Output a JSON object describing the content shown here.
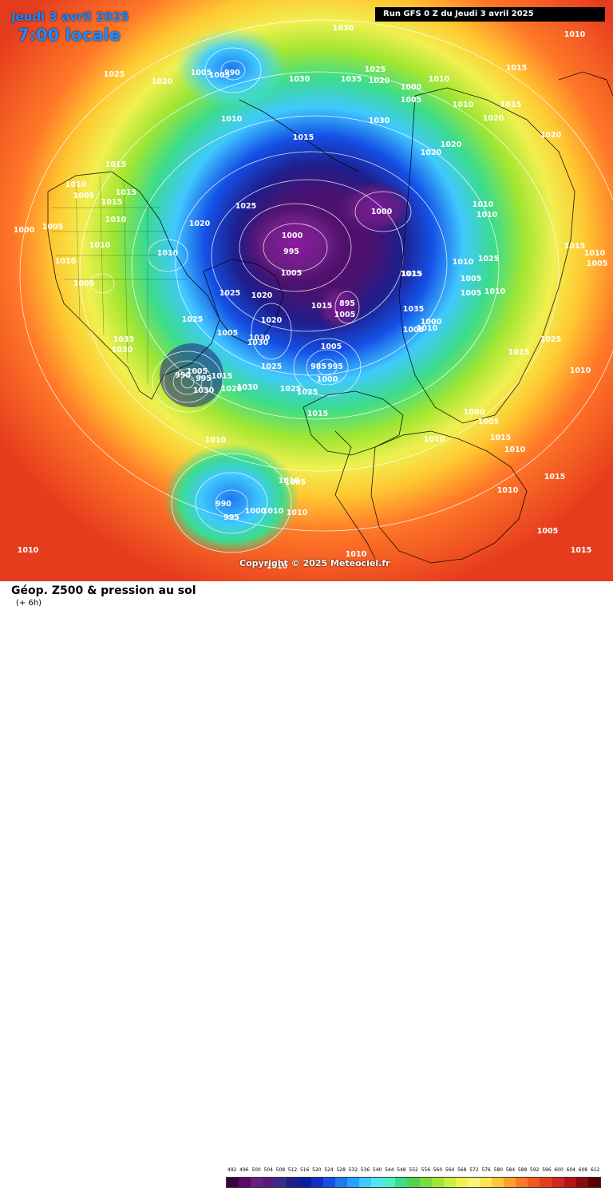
{
  "header": {
    "date_title": "Jeudi 3 avril 2025",
    "time_title": "7:00 locale",
    "run_info": "Run GFS 0 Z du Jeudi 3 avril 2025"
  },
  "copyright": "Copyright © 2025 Meteociel.fr",
  "footer": {
    "title": "Géop. Z500 & pression au sol",
    "subtitle": "(+ 6h)"
  },
  "legend": {
    "values": [
      "492",
      "496",
      "500",
      "504",
      "508",
      "512",
      "516",
      "520",
      "524",
      "528",
      "532",
      "536",
      "540",
      "544",
      "548",
      "552",
      "556",
      "560",
      "564",
      "568",
      "572",
      "576",
      "580",
      "584",
      "588",
      "592",
      "596",
      "600",
      "604",
      "608",
      "612"
    ],
    "colors": [
      "#3a0040",
      "#5a0a6a",
      "#6a1e80",
      "#5a1a7a",
      "#3a2a8c",
      "#1e1e8c",
      "#0a1ea0",
      "#1030c8",
      "#1450e6",
      "#1e78f0",
      "#28a0ff",
      "#40c8ff",
      "#50e6f0",
      "#46f0c8",
      "#3cdc8c",
      "#50d250",
      "#78dc3c",
      "#a0e632",
      "#c8f03c",
      "#f0f050",
      "#fff078",
      "#ffe650",
      "#ffc832",
      "#ffa028",
      "#ff7828",
      "#f05a1e",
      "#e63c1e",
      "#d2281e",
      "#b41414",
      "#8c0a0a",
      "#5a0000"
    ]
  },
  "pressure_labels": [
    {
      "t": "1030"
    },
    {
      "t": "1010"
    },
    {
      "t": "1025"
    },
    {
      "t": "1020"
    },
    {
      "t": "1005"
    },
    {
      "t": "1005"
    },
    {
      "t": "990"
    },
    {
      "t": "1025"
    },
    {
      "t": "1035"
    },
    {
      "t": "1030"
    },
    {
      "t": "1020"
    },
    {
      "t": "1015"
    },
    {
      "t": "1010"
    },
    {
      "t": "1000"
    },
    {
      "t": "1005"
    },
    {
      "t": "1010"
    },
    {
      "t": "1015"
    },
    {
      "t": "1030"
    },
    {
      "t": "1010"
    },
    {
      "t": "1015"
    },
    {
      "t": "1020"
    },
    {
      "t": "1020"
    },
    {
      "t": "1020"
    },
    {
      "t": "1020"
    },
    {
      "t": "1015"
    },
    {
      "t": "1010"
    },
    {
      "t": "1005"
    },
    {
      "t": "1015"
    },
    {
      "t": "1015"
    },
    {
      "t": "1010"
    },
    {
      "t": "1000"
    },
    {
      "t": "1005"
    },
    {
      "t": "1000"
    },
    {
      "t": "995"
    },
    {
      "t": "1005"
    },
    {
      "t": "1000"
    },
    {
      "t": "1010"
    },
    {
      "t": "1010"
    },
    {
      "t": "1025"
    },
    {
      "t": "1020"
    },
    {
      "t": "1015"
    },
    {
      "t": "1025"
    },
    {
      "t": "1015"
    },
    {
      "t": "1010"
    },
    {
      "t": "1010"
    },
    {
      "t": "1010"
    },
    {
      "t": "1005"
    },
    {
      "t": "1015"
    },
    {
      "t": "1010"
    },
    {
      "t": "1005"
    },
    {
      "t": "1005"
    },
    {
      "t": "1005"
    },
    {
      "t": "1010"
    },
    {
      "t": "1010"
    },
    {
      "t": "1025"
    },
    {
      "t": "1020"
    },
    {
      "t": "1005"
    },
    {
      "t": "1025"
    },
    {
      "t": "1020"
    },
    {
      "t": "1035"
    },
    {
      "t": "1015"
    },
    {
      "t": "895"
    },
    {
      "t": "1005"
    },
    {
      "t": "1010"
    },
    {
      "t": "1005"
    },
    {
      "t": "1000"
    },
    {
      "t": "1015"
    },
    {
      "t": "1025"
    },
    {
      "t": "1030"
    },
    {
      "t": "1035"
    },
    {
      "t": "1030"
    },
    {
      "t": "1030"
    },
    {
      "t": "1025"
    },
    {
      "t": "1005"
    },
    {
      "t": "985"
    },
    {
      "t": "995"
    },
    {
      "t": "1000"
    },
    {
      "t": "1025"
    },
    {
      "t": "990"
    },
    {
      "t": "1005"
    },
    {
      "t": "995"
    },
    {
      "t": "1015"
    },
    {
      "t": "1020"
    },
    {
      "t": "1030"
    },
    {
      "t": "1025"
    },
    {
      "t": "1030"
    },
    {
      "t": "1015"
    },
    {
      "t": "1000"
    },
    {
      "t": "1005"
    },
    {
      "t": "1010"
    },
    {
      "t": "1010"
    },
    {
      "t": "1015"
    },
    {
      "t": "1010"
    },
    {
      "t": "1005"
    },
    {
      "t": "990"
    },
    {
      "t": "995"
    },
    {
      "t": "1000"
    },
    {
      "t": "1010"
    },
    {
      "t": "1010"
    },
    {
      "t": "1010"
    },
    {
      "t": "1010"
    },
    {
      "t": "1015"
    },
    {
      "t": "1010"
    },
    {
      "t": "1005"
    },
    {
      "t": "1010"
    },
    {
      "t": "1010"
    },
    {
      "t": "1010"
    },
    {
      "t": "1015"
    }
  ]
}
